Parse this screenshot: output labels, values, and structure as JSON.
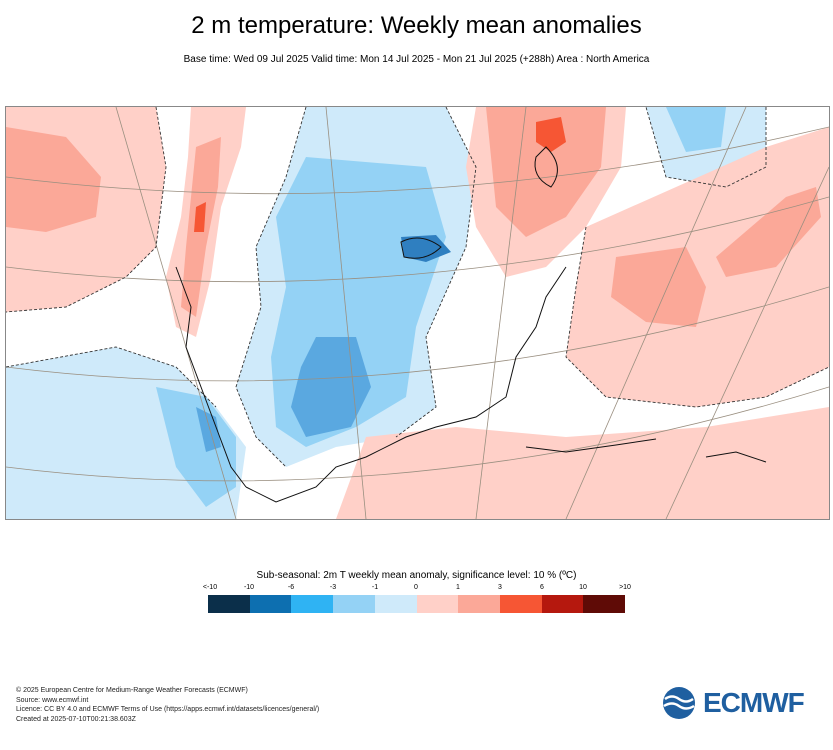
{
  "header": {
    "title": "2 m temperature: Weekly mean anomalies",
    "subtitle": "Base time: Wed 09 Jul 2025 Valid time: Mon 14 Jul 2025 - Mon 21 Jul 2025 (+288h) Area : North America"
  },
  "legend": {
    "title": "Sub-seasonal: 2m T weekly mean anomaly, significance level: 10 % (ºC)",
    "ticks": [
      "<-10",
      "-10",
      "-6",
      "-3",
      "-1",
      "0",
      "1",
      "3",
      "6",
      "10",
      ">10"
    ],
    "colors": [
      "#0b2f4a",
      "#0d6fb0",
      "#2fb3f3",
      "#94d2f5",
      "#cfeafa",
      "#ffd0c8",
      "#fba898",
      "#f65634",
      "#b5180e",
      "#5f0b06"
    ]
  },
  "map": {
    "region": "North America",
    "colors": {
      "strong_cold": "#5aa8e0",
      "cold": "#94d2f5",
      "light_cold": "#cfeafa",
      "light_warm": "#ffd0c8",
      "warm": "#fba898",
      "strong_warm": "#f65634"
    }
  },
  "footer": {
    "line1": "© 2025 European Centre for Medium-Range Weather Forecasts (ECMWF)",
    "line2": "Source: www.ecmwf.int",
    "line3": "Licence: CC BY 4.0 and ECMWF Terms of Use (https://apps.ecmwf.int/datasets/licences/general/)",
    "line4": "Created at 2025-07-10T00:21:38.603Z"
  },
  "logo": {
    "text": "ECMWF"
  }
}
